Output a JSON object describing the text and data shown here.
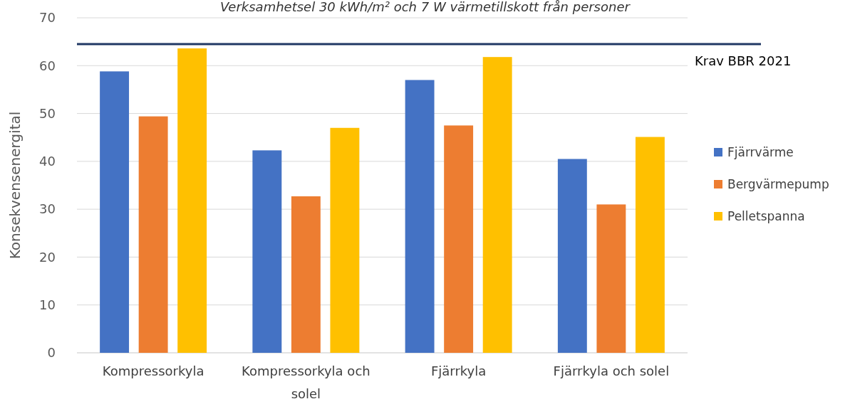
{
  "chart_data": {
    "type": "bar",
    "title": "Verksamhetsel 30 kWh/m² och 7 W värmetillskott från personer",
    "ylabel": "Konsekvensenergital",
    "categories": [
      "Kompressorkyla",
      "Kompressorkyla och solel",
      "Fjärrkyla",
      "Fjärrkyla och solel"
    ],
    "series": [
      {
        "name": "Fjärrvärme",
        "color": "#4472c4",
        "values": [
          58.8,
          42.3,
          57,
          40.5
        ]
      },
      {
        "name": "Bergvärmepump",
        "color": "#ed7d31",
        "values": [
          49.4,
          32.7,
          47.5,
          31
        ]
      },
      {
        "name": "Pelletspanna",
        "color": "#ffc000",
        "values": [
          63.6,
          47,
          61.8,
          45.1
        ]
      }
    ],
    "ylim": [
      0,
      70
    ],
    "yticks": [
      0,
      10,
      20,
      30,
      40,
      50,
      60,
      70
    ],
    "grid": "y",
    "legend": "right",
    "ref_lines": [
      {
        "axis": "y",
        "value": 64.5,
        "label": "Krav BBR 2021",
        "color": "#203864"
      }
    ]
  }
}
